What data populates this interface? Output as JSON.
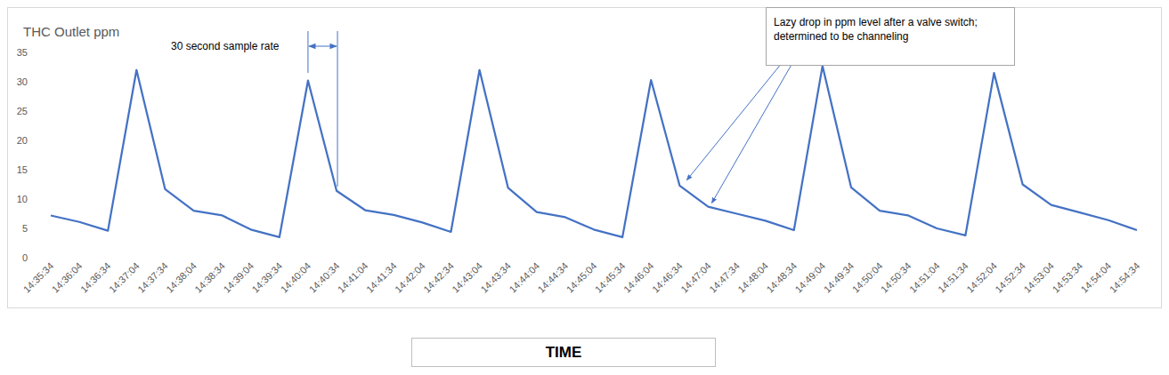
{
  "chart_data": {
    "type": "line",
    "title": "THC Outlet ppm",
    "x_label": "TIME",
    "categories": [
      "14:35:34",
      "14:36:04",
      "14:36:34",
      "14:37:04",
      "14:37:34",
      "14:38:04",
      "14:38:34",
      "14:39:04",
      "14:39:34",
      "14:40:04",
      "14:40:34",
      "14:41:04",
      "14:41:34",
      "14:42:04",
      "14:42:34",
      "14:43:04",
      "14:43:34",
      "14:44:04",
      "14:44:34",
      "14:45:04",
      "14:45:34",
      "14:46:04",
      "14:46:34",
      "14:47:04",
      "14:47:34",
      "14:48:04",
      "14:48:34",
      "14:49:04",
      "14:49:34",
      "14:50:04",
      "14:50:34",
      "14:51:04",
      "14:51:34",
      "14:52:04",
      "14:52:34",
      "14:53:04",
      "14:53:34",
      "14:54:04",
      "14:54:34"
    ],
    "values": [
      7.2,
      6.1,
      4.6,
      32,
      11.7,
      8,
      7.2,
      4.8,
      3.5,
      30.2,
      11.4,
      8.1,
      7.3,
      6,
      4.4,
      32,
      11.9,
      7.8,
      6.9,
      4.8,
      3.5,
      30.3,
      12.3,
      8.7,
      7.5,
      6.3,
      4.7,
      32.7,
      12,
      8,
      7.2,
      5,
      3.8,
      31.5,
      12.5,
      9,
      7.7,
      6.4,
      4.7
    ],
    "color": "#4472c4",
    "ylim": [
      0,
      35
    ],
    "yticks": [
      0,
      5,
      10,
      15,
      20,
      25,
      30,
      35
    ],
    "grid": false,
    "annotations": [
      "30 second sample rate",
      "Lazy drop in ppm level after a valve switch; determined to be channeling"
    ]
  }
}
